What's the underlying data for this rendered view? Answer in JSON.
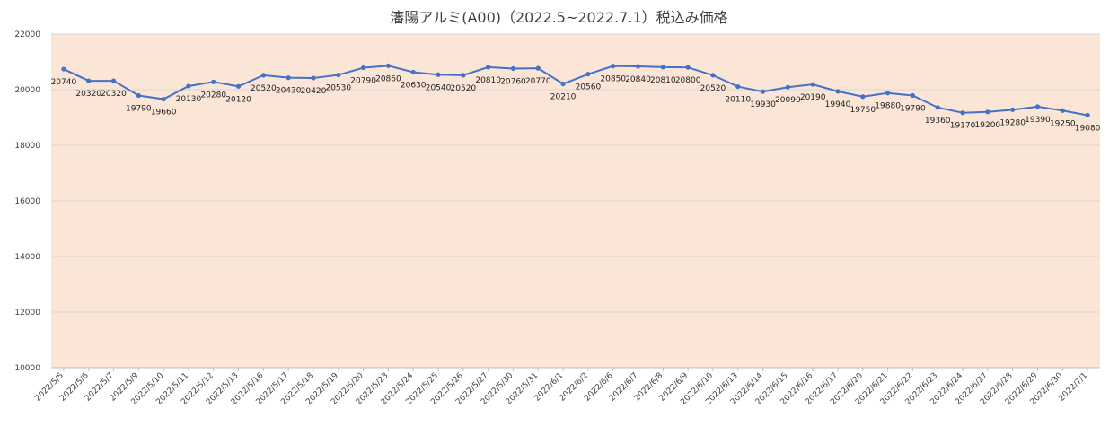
{
  "chart_data": {
    "type": "line",
    "title": "瀋陽アルミ(A00)（2022.5~2022.7.1）税込み価格",
    "xlabel": "",
    "ylabel": "",
    "ylim": [
      10000,
      22000
    ],
    "yticks": [
      "10000",
      "12000",
      "14000",
      "16000",
      "18000",
      "20000",
      "22000"
    ],
    "grid": true,
    "legend": "none",
    "plot_bg": "#FBE5D6",
    "line_color": "#4472C4",
    "categories": [
      "2022/5/5",
      "2022/5/6",
      "2022/5/7",
      "2022/5/9",
      "2022/5/10",
      "2022/5/11",
      "2022/5/12",
      "2022/5/13",
      "2022/5/16",
      "2022/5/17",
      "2022/5/18",
      "2022/5/19",
      "2022/5/20",
      "2022/5/23",
      "2022/5/24",
      "2022/5/25",
      "2022/5/26",
      "2022/5/27",
      "2022/5/30",
      "2022/5/31",
      "2022/6/1",
      "2022/6/2",
      "2022/6/6",
      "2022/6/7",
      "2022/6/8",
      "2022/6/9",
      "2022/6/10",
      "2022/6/13",
      "2022/6/14",
      "2022/6/15",
      "2022/6/16",
      "2022/6/17",
      "2022/6/20",
      "2022/6/21",
      "2022/6/22",
      "2022/6/23",
      "2022/6/24",
      "2022/6/27",
      "2022/6/28",
      "2022/6/29",
      "2022/6/30",
      "2022/7/1"
    ],
    "values": [
      20740,
      20320,
      20320,
      19790,
      19660,
      20130,
      20280,
      20120,
      20520,
      20430,
      20420,
      20530,
      20790,
      20860,
      20630,
      20540,
      20520,
      20810,
      20760,
      20770,
      20210,
      20560,
      20850,
      20840,
      20810,
      20800,
      20520,
      20110,
      19930,
      20090,
      20190,
      19940,
      19750,
      19880,
      19790,
      19360,
      19170,
      19200,
      19280,
      19390,
      19250,
      19080
    ]
  }
}
